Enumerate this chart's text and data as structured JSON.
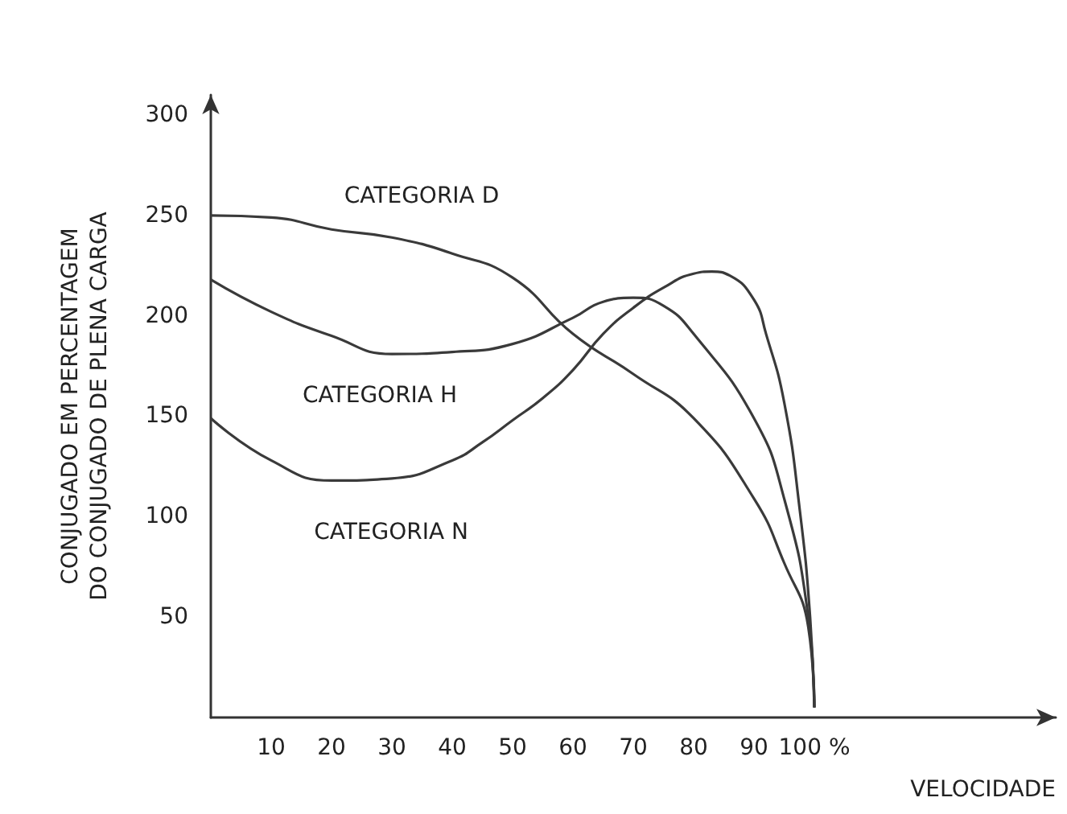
{
  "chart_data": {
    "type": "line",
    "xlabel": "VELOCIDADE",
    "ylabel": "CONJUGADO EM PERCENTAGEM\nDO CONJUGADO DE PLENA CARGA",
    "xlim": [
      0,
      140
    ],
    "xticks": [
      10,
      20,
      30,
      40,
      50,
      60,
      70,
      80,
      90,
      {
        "value": 100,
        "label": "100 %"
      }
    ],
    "ylim": [
      0,
      310
    ],
    "yticks": [
      50,
      100,
      150,
      200,
      250,
      300
    ],
    "grid": false,
    "marker": "none",
    "line_style": "solid",
    "series": [
      {
        "color": "#3a3a3a",
        "x": [
          0,
          10,
          20,
          30,
          40,
          50,
          60,
          70,
          80,
          90,
          95,
          99,
          100
        ],
        "values": [
          250,
          249,
          243,
          239,
          231,
          219,
          191,
          171,
          149,
          109,
          77,
          45,
          5
        ]
      },
      {
        "color": "#3a3a3a",
        "x": [
          0,
          10,
          20,
          30,
          40,
          50,
          60,
          65,
          70,
          75,
          80,
          90,
          95,
          99,
          100
        ],
        "values": [
          218,
          202,
          190,
          181,
          182,
          186,
          199,
          207,
          209,
          205,
          191,
          149,
          109,
          50,
          5
        ]
      },
      {
        "color": "#3a3a3a",
        "x": [
          0,
          10,
          20,
          30,
          40,
          45,
          50,
          55,
          60,
          65,
          70,
          75,
          80,
          83,
          86,
          90,
          92,
          95,
          97.6,
          99.3,
          100
        ],
        "values": [
          149,
          128,
          118,
          119,
          128,
          137,
          148,
          159,
          173,
          191,
          204,
          214,
          221,
          222,
          220,
          208,
          191,
          157,
          103,
          50,
          5
        ]
      }
    ],
    "annotations": [
      "CATEGORIA D",
      "CATEGORIA H",
      "CATEGORIA N"
    ]
  }
}
